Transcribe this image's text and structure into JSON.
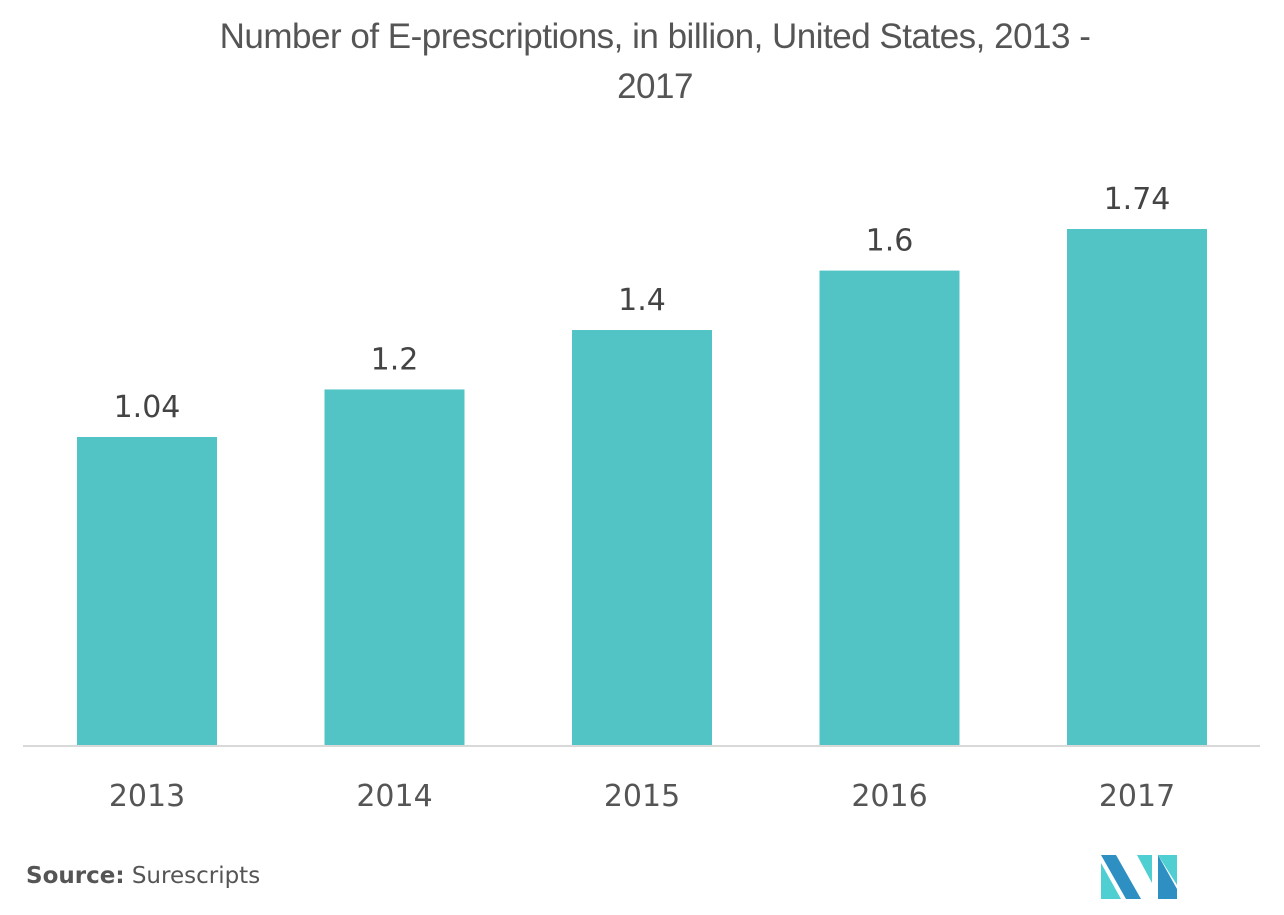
{
  "chart_data": {
    "type": "bar",
    "title": "Number of E-prescriptions, in billion, United States, 2013 - 2017",
    "title_lines": [
      "Number of E-prescriptions, in billion, United States, 2013 -",
      "2017"
    ],
    "categories": [
      "2013",
      "2014",
      "2015",
      "2016",
      "2017"
    ],
    "values": [
      1.04,
      1.2,
      1.4,
      1.6,
      1.74
    ],
    "value_labels": [
      "1.04",
      "1.2",
      "1.4",
      "1.6",
      "1.74"
    ],
    "xlabel": "",
    "ylabel": "",
    "ylim": [
      0,
      1.74
    ],
    "grid": false,
    "legend": "none",
    "bar_color": "#52C4C6",
    "axis_color": "#D9D9D9"
  },
  "footer": {
    "source_label": "Source:",
    "source_value": "Surescripts"
  },
  "logo": {
    "name": "mordor-intelligence-logo",
    "colors": [
      "#2E8FC2",
      "#4FCFD1"
    ]
  }
}
